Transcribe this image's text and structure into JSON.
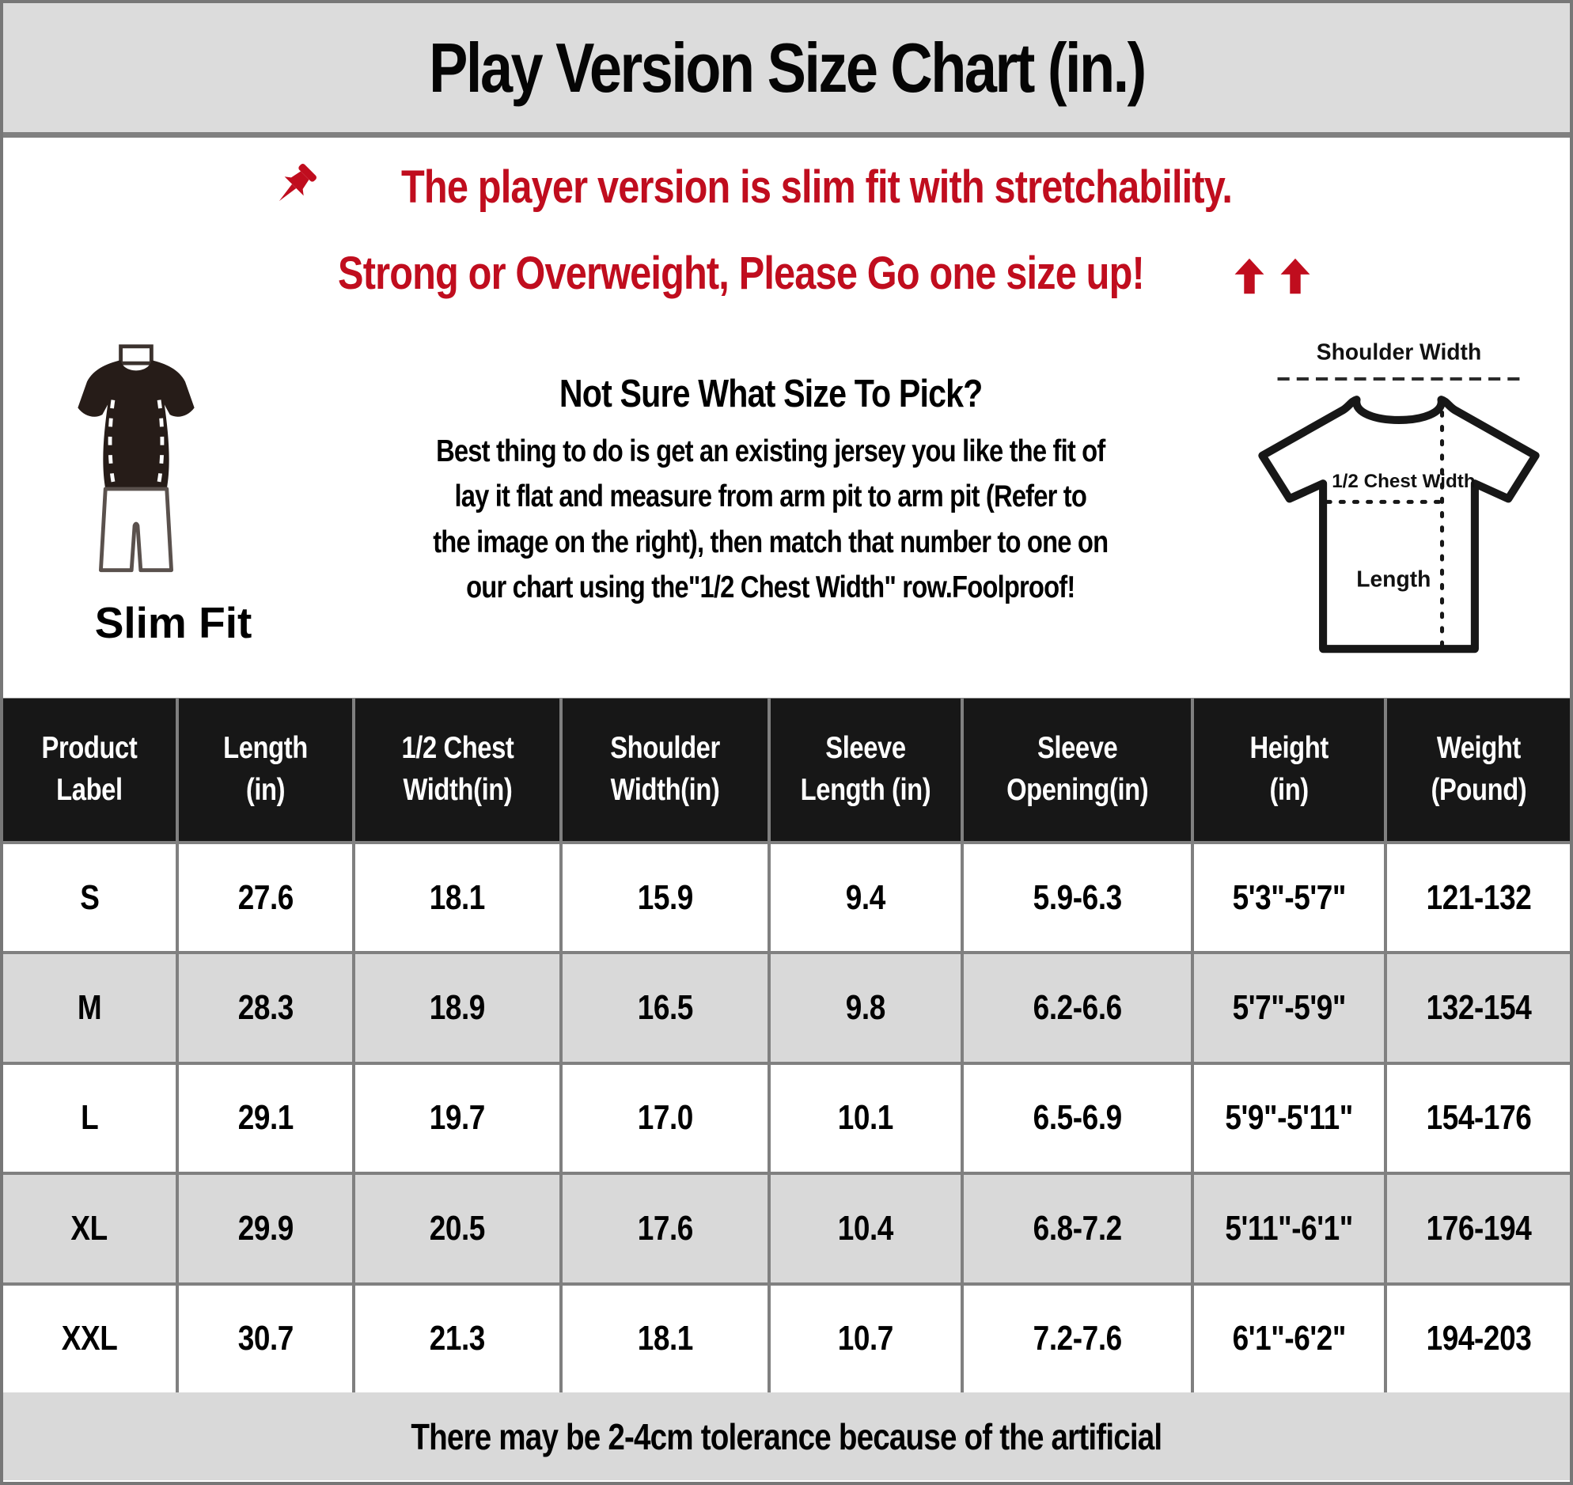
{
  "title": "Play Version Size Chart (in.)",
  "notice": {
    "line1": "The player version is slim fit with stretchability.",
    "line2": "Strong or Overweight, Please Go one size up!"
  },
  "slim_fit_label": "Slim Fit",
  "size_help": {
    "heading": "Not Sure What Size To Pick?",
    "body": "Best thing to do is get an existing jersey you like the fit of\nlay it flat and measure from arm pit to arm pit (Refer to\nthe image on the right), then match that number to one on\nour chart using the\"1/2 Chest Width\" row.Foolproof!"
  },
  "diagram_labels": {
    "shoulder": "Shoulder Width",
    "chest": "1/2 Chest Width",
    "length": "Length"
  },
  "icons": {
    "pushpin": "pushpin-icon",
    "arrows": "arrow-up-icon",
    "slim_fit": "slim-fit-outfit-icon",
    "tshirt_measure": "tshirt-measurement-diagram"
  },
  "colors": {
    "accent_red": "#C00D1E",
    "header_bg": "#171717",
    "alt_row_bg": "#D9D9D9",
    "panel_bg": "#DCDCDC",
    "grid": "#808080"
  },
  "chart_data": {
    "type": "table",
    "title": "Play Version Size Chart (in.)",
    "headers": [
      "Product\nLabel",
      "Length\n(in)",
      "1/2 Chest\nWidth(in)",
      "Shoulder\nWidth(in)",
      "Sleeve\nLength (in)",
      "Sleeve\nOpening(in)",
      "Height\n(in)",
      "Weight\n(Pound)"
    ],
    "rows": [
      [
        "S",
        "27.6",
        "18.1",
        "15.9",
        "9.4",
        "5.9-6.3",
        "5'3\"-5'7\"",
        "121-132"
      ],
      [
        "M",
        "28.3",
        "18.9",
        "16.5",
        "9.8",
        "6.2-6.6",
        "5'7\"-5'9\"",
        "132-154"
      ],
      [
        "L",
        "29.1",
        "19.7",
        "17.0",
        "10.1",
        "6.5-6.9",
        "5'9\"-5'11\"",
        "154-176"
      ],
      [
        "XL",
        "29.9",
        "20.5",
        "17.6",
        "10.4",
        "6.8-7.2",
        "5'11\"-6'1\"",
        "176-194"
      ],
      [
        "XXL",
        "30.7",
        "21.3",
        "18.1",
        "10.7",
        "7.2-7.6",
        "6'1\"-6'2\"",
        "194-203"
      ]
    ]
  },
  "footer": "There may be 2-4cm tolerance because of the artificial"
}
